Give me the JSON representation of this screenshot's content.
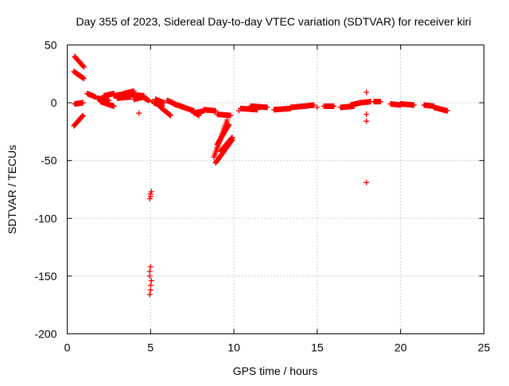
{
  "chart_data": {
    "type": "scatter",
    "title": "Day 355 of 2023, Sidereal Day-to-day VTEC variation (SDTVAR) for receiver kiri",
    "xlabel": "GPS time / hours",
    "ylabel": "SDTVAR / TECUs",
    "xlim": [
      0,
      25
    ],
    "ylim": [
      -200,
      50
    ],
    "xticks": [
      0,
      5,
      10,
      15,
      20,
      25
    ],
    "yticks": [
      -200,
      -150,
      -100,
      -50,
      0,
      50
    ],
    "grid": true,
    "marker": "+",
    "color": "#ff0000",
    "series": [
      {
        "name": "SDTVAR",
        "segments": [
          {
            "x0": 0.45,
            "y0": 40,
            "x1": 1.0,
            "y1": 31
          },
          {
            "x0": 0.4,
            "y0": 27,
            "x1": 1.0,
            "y1": 21
          },
          {
            "x0": 0.4,
            "y0": -20,
            "x1": 0.95,
            "y1": -11
          },
          {
            "x0": 0.45,
            "y0": -1,
            "x1": 0.95,
            "y1": 0
          },
          {
            "x0": 1.2,
            "y0": 8,
            "x1": 1.7,
            "y1": 5
          },
          {
            "x0": 1.8,
            "y0": 4,
            "x1": 2.5,
            "y1": 2
          },
          {
            "x0": 2.2,
            "y0": 6,
            "x1": 2.8,
            "y1": 8
          },
          {
            "x0": 2.0,
            "y0": 1,
            "x1": 2.8,
            "y1": -3
          },
          {
            "x0": 2.8,
            "y0": 6,
            "x1": 3.6,
            "y1": 8
          },
          {
            "x0": 3.0,
            "y0": 4,
            "x1": 3.8,
            "y1": 5
          },
          {
            "x0": 3.4,
            "y0": 8,
            "x1": 4.0,
            "y1": 10
          },
          {
            "x0": 3.8,
            "y0": 7,
            "x1": 4.6,
            "y1": 6
          },
          {
            "x0": 4.0,
            "y0": 3,
            "x1": 4.6,
            "y1": 5
          },
          {
            "x0": 4.4,
            "y0": 6,
            "x1": 4.9,
            "y1": 2
          },
          {
            "x0": 5.3,
            "y0": 3,
            "x1": 5.8,
            "y1": 0
          },
          {
            "x0": 5.2,
            "y0": 0,
            "x1": 5.7,
            "y1": -3
          },
          {
            "x0": 5.6,
            "y0": -4,
            "x1": 6.2,
            "y1": -11
          },
          {
            "x0": 6.0,
            "y0": 2,
            "x1": 6.6,
            "y1": -2
          },
          {
            "x0": 6.4,
            "y0": -1,
            "x1": 7.0,
            "y1": -4
          },
          {
            "x0": 6.8,
            "y0": -3,
            "x1": 7.6,
            "y1": -7
          },
          {
            "x0": 7.4,
            "y0": -6,
            "x1": 7.9,
            "y1": -11
          },
          {
            "x0": 7.6,
            "y0": -9,
            "x1": 8.2,
            "y1": -7
          },
          {
            "x0": 8.2,
            "y0": -6,
            "x1": 8.9,
            "y1": -7
          },
          {
            "x0": 8.8,
            "y0": -47,
            "x1": 9.6,
            "y1": -15
          },
          {
            "x0": 9.0,
            "y0": -36,
            "x1": 9.7,
            "y1": -19
          },
          {
            "x0": 9.2,
            "y0": -42,
            "x1": 9.9,
            "y1": -30
          },
          {
            "x0": 8.9,
            "y0": -52,
            "x1": 9.9,
            "y1": -32
          },
          {
            "x0": 9.0,
            "y0": -10,
            "x1": 9.8,
            "y1": -11
          },
          {
            "x0": 10.4,
            "y0": -5,
            "x1": 11.4,
            "y1": -6
          },
          {
            "x0": 11.0,
            "y0": -3,
            "x1": 12.0,
            "y1": -4
          },
          {
            "x0": 12.4,
            "y0": -6,
            "x1": 13.4,
            "y1": -5
          },
          {
            "x0": 13.4,
            "y0": -4,
            "x1": 14.2,
            "y1": -3
          },
          {
            "x0": 14.2,
            "y0": -3,
            "x1": 14.8,
            "y1": -2
          },
          {
            "x0": 15.4,
            "y0": -3,
            "x1": 16.0,
            "y1": -3
          },
          {
            "x0": 16.4,
            "y0": -4,
            "x1": 17.2,
            "y1": -3
          },
          {
            "x0": 17.0,
            "y0": -2,
            "x1": 17.6,
            "y1": 0
          },
          {
            "x0": 17.6,
            "y0": 0,
            "x1": 18.2,
            "y1": 1
          },
          {
            "x0": 18.4,
            "y0": 1,
            "x1": 18.8,
            "y1": 1
          },
          {
            "x0": 19.4,
            "y0": -1,
            "x1": 20.0,
            "y1": -2
          },
          {
            "x0": 20.0,
            "y0": -1,
            "x1": 20.8,
            "y1": -2
          },
          {
            "x0": 21.4,
            "y0": -2,
            "x1": 22.0,
            "y1": -3
          },
          {
            "x0": 22.0,
            "y0": -4,
            "x1": 22.8,
            "y1": -7
          }
        ],
        "points": [
          [
            4.3,
            -9
          ],
          [
            5.0,
            -79
          ],
          [
            5.0,
            -81
          ],
          [
            4.95,
            -83
          ],
          [
            5.05,
            -77
          ],
          [
            5.0,
            -142
          ],
          [
            4.95,
            -146
          ],
          [
            4.95,
            -150
          ],
          [
            5.0,
            -158
          ],
          [
            5.0,
            -162
          ],
          [
            4.95,
            -166
          ],
          [
            5.05,
            -154
          ],
          [
            17.95,
            9
          ],
          [
            17.95,
            -10
          ],
          [
            17.95,
            -16
          ],
          [
            17.95,
            -69
          ],
          [
            4.7,
            3
          ],
          [
            5.1,
            1
          ],
          [
            15.0,
            -4
          ],
          [
            10.3,
            -7
          ]
        ]
      }
    ]
  }
}
